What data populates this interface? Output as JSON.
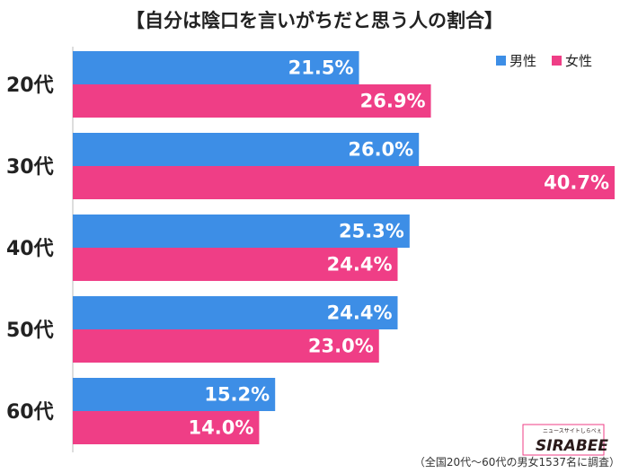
{
  "chart_data": {
    "type": "bar",
    "orientation": "horizontal",
    "title": "【自分は陰口を言いがちだと思う人の割合】",
    "categories": [
      "20代",
      "30代",
      "40代",
      "50代",
      "60代"
    ],
    "series": [
      {
        "name": "男性",
        "color": "#3d8ee6",
        "values": [
          21.5,
          26.0,
          25.3,
          24.4,
          15.2
        ],
        "labels": [
          "21.5%",
          "26.0%",
          "25.3%",
          "24.4%",
          "15.2%"
        ]
      },
      {
        "name": "女性",
        "color": "#ef3e86",
        "values": [
          26.9,
          40.7,
          24.4,
          23.0,
          14.0
        ],
        "labels": [
          "26.9%",
          "40.7%",
          "24.4%",
          "23.0%",
          "14.0%"
        ]
      }
    ],
    "xlim": [
      0,
      40.7
    ],
    "grid": false,
    "legend": "top-right"
  },
  "footnote": "（全国20代～60代の男女1537名に調査）",
  "logo": {
    "name": "SIRABEE",
    "tagline": "ニュースサイトしらべぇ"
  }
}
